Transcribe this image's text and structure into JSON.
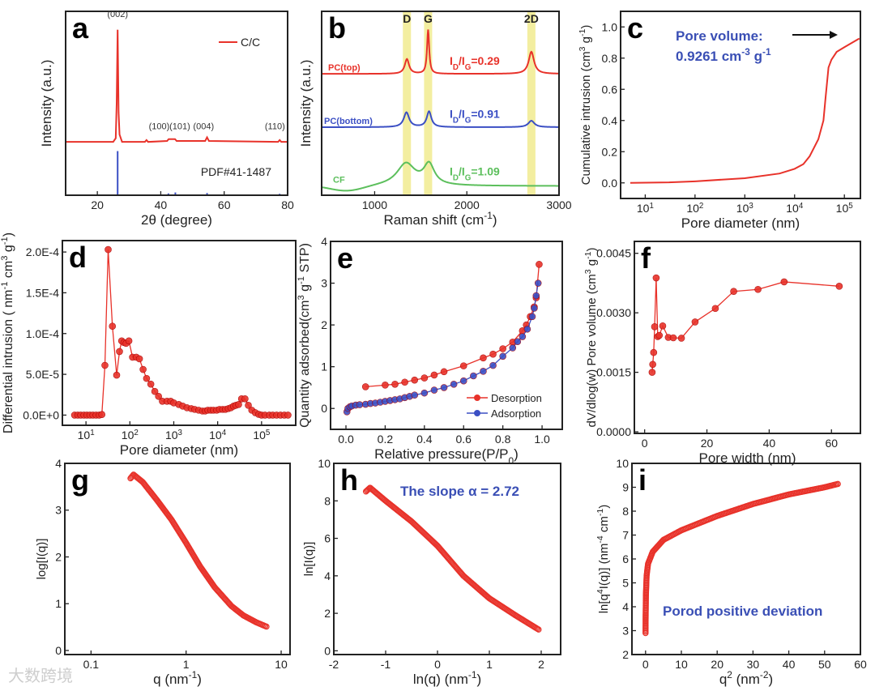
{
  "colors": {
    "red": "#e8322a",
    "blue": "#3b4fc4",
    "green": "#5cbf5c",
    "band": "#f3eea0",
    "annot_blue": "#3a4fb5"
  },
  "watermark": "大数跨境",
  "chart_data": [
    {
      "id": "a",
      "letter": "a",
      "type": "line",
      "xlabel": "2θ (degree)",
      "ylabel": "Intensity (a.u.)",
      "xlim": [
        10,
        80
      ],
      "ylim": [
        0,
        1
      ],
      "xticks": [
        20,
        40,
        60,
        80
      ],
      "yticks": [],
      "legend": {
        "label": "C/C",
        "placement": "top-right"
      },
      "series": [
        {
          "name": "C/C",
          "color": "red",
          "x": [
            10,
            20,
            25,
            25.8,
            26.1,
            26.4,
            26.7,
            27.0,
            27.8,
            35,
            35.5,
            36,
            42,
            42.5,
            44.5,
            45,
            54,
            54.6,
            55.2,
            77,
            77.5,
            78,
            80
          ],
          "y": [
            0.29,
            0.29,
            0.29,
            0.31,
            0.5,
            0.9,
            0.45,
            0.33,
            0.29,
            0.29,
            0.3,
            0.29,
            0.295,
            0.305,
            0.305,
            0.295,
            0.295,
            0.315,
            0.295,
            0.29,
            0.3,
            0.29,
            0.29
          ]
        }
      ],
      "reference": {
        "label": "PDF#41-1487",
        "color": "blue",
        "x": [
          26.4,
          42.4,
          44.6,
          54.6,
          77.5
        ],
        "y": [
          0.24,
          0.01,
          0.015,
          0.012,
          0.008
        ]
      },
      "peak_labels": [
        {
          "text": "(002)",
          "x": 26.4,
          "y": 0.97
        },
        {
          "text": "(100)",
          "x": 39.5,
          "y": 0.36
        },
        {
          "text": "(101)",
          "x": 46,
          "y": 0.36
        },
        {
          "text": "(004)",
          "x": 53.5,
          "y": 0.36
        },
        {
          "text": "(110)",
          "x": 76,
          "y": 0.36
        }
      ]
    },
    {
      "id": "b",
      "letter": "b",
      "type": "line",
      "xlabel": "Raman shift (cm^{-1})",
      "ylabel": "Intensity (a.u.)",
      "xlim": [
        425,
        3000
      ],
      "ylim": [
        0,
        1
      ],
      "xticks": [
        1000,
        2000,
        3000
      ],
      "yticks": [],
      "bands": [
        {
          "label": "D",
          "x": 1350
        },
        {
          "label": "G",
          "x": 1580
        },
        {
          "label": "2D",
          "x": 2700
        }
      ],
      "series": [
        {
          "name": "PC(top)",
          "color": "red",
          "baseline": 0.66,
          "ratio_label": "I_{D}/I_{G}=0.29",
          "peaks": [
            [
              1350,
              0.08,
              28
            ],
            [
              1580,
              0.24,
              14
            ],
            [
              2700,
              0.12,
              35
            ]
          ]
        },
        {
          "name": "PC(bottom)",
          "color": "blue",
          "baseline": 0.37,
          "ratio_label": "I_{D}/I_{G}=0.91",
          "peaks": [
            [
              1345,
              0.08,
              35
            ],
            [
              1590,
              0.085,
              30
            ],
            [
              2700,
              0.035,
              40
            ]
          ]
        },
        {
          "name": "CF",
          "color": "green",
          "baseline": 0.05,
          "ratio_label": "I_{D}/I_{G}=1.09",
          "peaks": [
            [
              1340,
              0.12,
              120
            ],
            [
              1590,
              0.11,
              70
            ],
            [
              2700,
              0.0,
              50
            ]
          ]
        }
      ]
    },
    {
      "id": "c",
      "letter": "c",
      "type": "line",
      "xscale": "log",
      "xlabel": "Pore diameter (nm)",
      "ylabel": "Cumulative intrusion (cm^{3} g^{-1})",
      "xlim": [
        3.2,
        210000
      ],
      "ylim": [
        -0.1,
        1.1
      ],
      "xticks": [
        10,
        100,
        1000,
        10000,
        100000
      ],
      "xticklabels": [
        "10^{1}",
        "10^{2}",
        "10^{3}",
        "10^{4}",
        "10^{5}"
      ],
      "yticks": [
        0,
        0.2,
        0.4,
        0.6,
        0.8,
        1.0
      ],
      "yticklabels": [
        "0.0",
        "0.2",
        "0.4",
        "0.6",
        "0.8",
        "1.0"
      ],
      "annotation": [
        "Pore volume:",
        "0.9261 cm^{-3} g^{-1}"
      ],
      "series": [
        {
          "name": "cumulative",
          "color": "red",
          "markers": false,
          "x": [
            5,
            30,
            100,
            1000,
            5000,
            10000,
            15000,
            20000,
            30000,
            38000,
            42000,
            48000,
            55000,
            70000,
            100000,
            200000
          ],
          "y": [
            0,
            0.003,
            0.01,
            0.03,
            0.06,
            0.09,
            0.12,
            0.17,
            0.28,
            0.4,
            0.55,
            0.74,
            0.79,
            0.84,
            0.87,
            0.926
          ]
        }
      ]
    },
    {
      "id": "d",
      "letter": "d",
      "type": "line",
      "xscale": "log",
      "xlabel": "Pore diameter (nm)",
      "ylabel": "Differential intrusion ( nm^{-1} cm^{3} g^{-1})",
      "xlim": [
        2.9,
        600000
      ],
      "ylim": [
        -1.25e-05,
        0.000214
      ],
      "xticks": [
        10,
        100,
        1000,
        10000,
        100000
      ],
      "xticklabels": [
        "10^{1}",
        "10^{2}",
        "10^{3}",
        "10^{4}",
        "10^{5}"
      ],
      "yticks": [
        0,
        5e-05,
        0.0001,
        0.00015,
        0.0002
      ],
      "yticklabels": [
        "0.0E+0",
        "5.0E-5",
        "1.0E-4",
        "1.5E-4",
        "2.0E-4"
      ],
      "series": [
        {
          "name": "differential",
          "color": "red",
          "markers": true,
          "x": [
            5.5,
            6.5,
            7.6,
            9,
            10.5,
            12.3,
            14.4,
            17,
            20,
            23,
            27,
            32,
            40,
            50,
            58,
            65,
            73,
            82,
            95,
            115,
            140,
            165,
            200,
            240,
            300,
            370,
            450,
            550,
            700,
            850,
            1000,
            1300,
            1600,
            2000,
            2500,
            3000,
            3700,
            4500,
            5200,
            6000,
            7000,
            8000,
            9500,
            11000,
            13000,
            15000,
            17500,
            20000,
            23000,
            26000,
            30000,
            35000,
            42000,
            50000,
            60000,
            72000,
            86000,
            100000,
            120000,
            150000,
            180000,
            220000,
            270000,
            330000,
            400000
          ],
          "y": [
            0,
            0,
            0,
            0,
            0,
            0,
            0,
            0,
            0,
            7e-07,
            6.1e-05,
            0.000203,
            0.000109,
            4.9e-05,
            7.8e-05,
            9.1e-05,
            8.9e-05,
            8.8e-05,
            9.1e-05,
            7.1e-05,
            7.1e-05,
            6.9e-05,
            5.6e-05,
            4.5e-05,
            3.8e-05,
            2.9e-05,
            2.3e-05,
            1.7e-05,
            1.7e-05,
            1.7e-05,
            1.5e-05,
            1.3e-05,
            1.1e-05,
            9e-06,
            8e-06,
            7e-06,
            6e-06,
            5e-06,
            5e-06,
            6e-06,
            6e-06,
            6e-06,
            6e-06,
            7e-06,
            7e-06,
            7e-06,
            8e-06,
            9e-06,
            1.1e-05,
            1.2e-05,
            1.3e-05,
            2e-05,
            2e-05,
            1.2e-05,
            6e-06,
            3e-06,
            1e-06,
            0,
            0,
            0,
            0,
            0,
            0,
            0,
            0
          ]
        }
      ]
    },
    {
      "id": "e",
      "letter": "e",
      "type": "line",
      "xlabel": "Relative pressure(P/P_{0})",
      "ylabel": "Quantity adsorbed(cm^{3} g^{-1} STP)",
      "xlim": [
        -0.0785,
        1.103
      ],
      "ylim": [
        -0.5,
        4
      ],
      "xticks": [
        0,
        0.2,
        0.4,
        0.6,
        0.8,
        1.0
      ],
      "xticklabels": [
        "0.0",
        "0.2",
        "0.4",
        "0.6",
        "0.8",
        "1.0"
      ],
      "yticks": [
        0,
        1,
        2,
        3,
        4
      ],
      "yticklabels": [
        "0",
        "1",
        "2",
        "3",
        "4"
      ],
      "legend": {
        "placement": "bottom-right"
      },
      "series": [
        {
          "name": "Desorption",
          "color": "red",
          "markers": true,
          "x": [
            0.1,
            0.2,
            0.25,
            0.3,
            0.35,
            0.4,
            0.45,
            0.5,
            0.6,
            0.7,
            0.75,
            0.8,
            0.85,
            0.9,
            0.92,
            0.94,
            0.96,
            0.97,
            0.985
          ],
          "y": [
            0.52,
            0.56,
            0.58,
            0.63,
            0.68,
            0.73,
            0.8,
            0.88,
            1.02,
            1.21,
            1.3,
            1.43,
            1.59,
            1.86,
            2.0,
            2.2,
            2.43,
            2.65,
            3.45
          ]
        },
        {
          "name": "Adsorption",
          "color": "blue",
          "markers": true,
          "x": [
            0.005,
            0.01,
            0.02,
            0.03,
            0.05,
            0.07,
            0.1,
            0.125,
            0.15,
            0.175,
            0.2,
            0.225,
            0.25,
            0.275,
            0.3,
            0.325,
            0.35,
            0.4,
            0.45,
            0.5,
            0.55,
            0.6,
            0.65,
            0.7,
            0.75,
            0.8,
            0.85,
            0.875,
            0.9,
            0.925,
            0.95,
            0.96,
            0.97,
            0.98
          ],
          "y": [
            -0.08,
            0.0,
            0.04,
            0.06,
            0.08,
            0.09,
            0.1,
            0.12,
            0.13,
            0.15,
            0.17,
            0.19,
            0.21,
            0.23,
            0.26,
            0.29,
            0.32,
            0.37,
            0.44,
            0.5,
            0.58,
            0.66,
            0.78,
            0.89,
            1.03,
            1.25,
            1.45,
            1.6,
            1.72,
            1.9,
            2.2,
            2.4,
            2.7,
            3.0
          ]
        }
      ]
    },
    {
      "id": "f",
      "letter": "f",
      "type": "line",
      "xlabel": "Pore width (nm)",
      "ylabel": "dV/dlog(w) Pore volume (cm^{3} g^{-1})",
      "xlim": [
        -3.3,
        69.3
      ],
      "ylim": [
        -4e-05,
        0.0048
      ],
      "xticks": [
        0,
        20,
        40,
        60
      ],
      "xticklabels": [
        "0",
        "20",
        "40",
        "60"
      ],
      "yticks": [
        0,
        0.0015,
        0.003,
        0.0045
      ],
      "yticklabels": [
        "0.0000",
        "0.0015",
        "0.0030",
        "0.0045"
      ],
      "series": [
        {
          "name": "pore-size",
          "color": "red",
          "markers": true,
          "x": [
            2.4,
            2.6,
            2.9,
            3.2,
            3.7,
            4.2,
            4.7,
            5.8,
            7.6,
            9.2,
            11.8,
            16.2,
            22.7,
            28.6,
            36.4,
            44.8,
            62.5
          ],
          "y": [
            0.0015,
            0.0017,
            0.002,
            0.00265,
            0.00388,
            0.0024,
            0.00243,
            0.00267,
            0.00238,
            0.00237,
            0.00236,
            0.00277,
            0.00311,
            0.00354,
            0.00359,
            0.00378,
            0.00367
          ]
        }
      ]
    },
    {
      "id": "g",
      "letter": "g",
      "type": "scatter",
      "xscale": "log",
      "xlabel": "q (nm^{-1})",
      "ylabel": "log[I(q)]",
      "xlim": [
        0.053,
        12.4
      ],
      "ylim": [
        -0.087,
        4
      ],
      "xticks": [
        0.1,
        1,
        10
      ],
      "xticklabels": [
        "0.1",
        "1",
        "10"
      ],
      "yticks": [
        0,
        1,
        2,
        3,
        4
      ],
      "yticklabels": [
        "0",
        "1",
        "2",
        "3",
        "4"
      ],
      "series": [
        {
          "name": "SAXS",
          "color": "red",
          "dense": true,
          "x": [
            0.26,
            0.28,
            0.35,
            0.5,
            0.7,
            1.0,
            1.4,
            2,
            3,
            4,
            5.5,
            7.2
          ],
          "y": [
            3.68,
            3.76,
            3.6,
            3.2,
            2.8,
            2.3,
            1.8,
            1.35,
            0.95,
            0.75,
            0.6,
            0.5
          ]
        }
      ]
    },
    {
      "id": "h",
      "letter": "h",
      "type": "scatter",
      "xlabel": "ln(q) (nm^{-1})",
      "ylabel": "ln[I(q)]",
      "xlim": [
        -2,
        2.375
      ],
      "ylim": [
        -0.2,
        10
      ],
      "xticks": [
        -2,
        -1,
        0,
        1,
        2
      ],
      "xticklabels": [
        "-2",
        "-1",
        "0",
        "1",
        "2"
      ],
      "yticks": [
        0,
        2,
        4,
        6,
        8,
        10
      ],
      "yticklabels": [
        "0",
        "2",
        "4",
        "6",
        "8",
        "10"
      ],
      "annotation": [
        "The slope α = 2.72"
      ],
      "series": [
        {
          "name": "SAXS-ln",
          "color": "red",
          "dense": true,
          "x": [
            -1.38,
            -1.3,
            -1.0,
            -0.5,
            0,
            0.5,
            1.0,
            1.5,
            1.97
          ],
          "y": [
            8.5,
            8.7,
            8.0,
            6.9,
            5.6,
            4.0,
            2.8,
            1.9,
            1.1
          ]
        }
      ]
    },
    {
      "id": "i",
      "letter": "i",
      "type": "scatter",
      "xlabel": "q^{2} (nm^{-2})",
      "ylabel": "ln[q^{4}I(q)] (nm^{-4} cm^{-1})",
      "xlim": [
        -3.8,
        60
      ],
      "ylim": [
        2,
        10
      ],
      "xticks": [
        0,
        10,
        20,
        30,
        40,
        50,
        60
      ],
      "xticklabels": [
        "0",
        "10",
        "20",
        "30",
        "40",
        "50",
        "60"
      ],
      "yticks": [
        2,
        3,
        4,
        5,
        6,
        7,
        8,
        9,
        10
      ],
      "yticklabels": [
        "2",
        "3",
        "4",
        "5",
        "6",
        "7",
        "8",
        "9",
        "10"
      ],
      "annotation": [
        "Porod positive deviation"
      ],
      "series": [
        {
          "name": "Porod",
          "color": "red",
          "dense": true,
          "x": [
            0,
            0.02,
            0.1,
            0.3,
            0.7,
            2,
            5,
            10,
            20,
            30,
            40,
            50,
            54
          ],
          "y": [
            2.9,
            3.5,
            4.5,
            5.3,
            5.8,
            6.3,
            6.8,
            7.2,
            7.8,
            8.3,
            8.7,
            9.0,
            9.15
          ]
        }
      ]
    }
  ]
}
